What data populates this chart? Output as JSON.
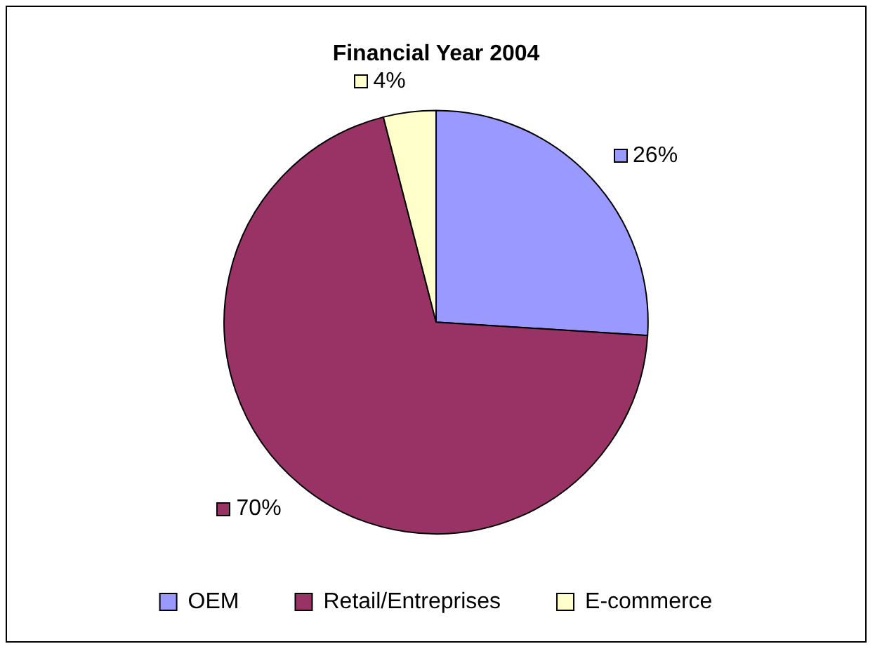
{
  "chart_data": {
    "type": "pie",
    "title": "Financial Year 2004",
    "categories": [
      "OEM",
      "Retail/Entreprises",
      "E-commerce"
    ],
    "values": [
      26,
      70,
      4
    ],
    "value_labels": [
      "26%",
      "70%",
      "4%"
    ],
    "colors": [
      "#9999ff",
      "#993366",
      "#ffffcc"
    ],
    "legend": "bottom"
  }
}
